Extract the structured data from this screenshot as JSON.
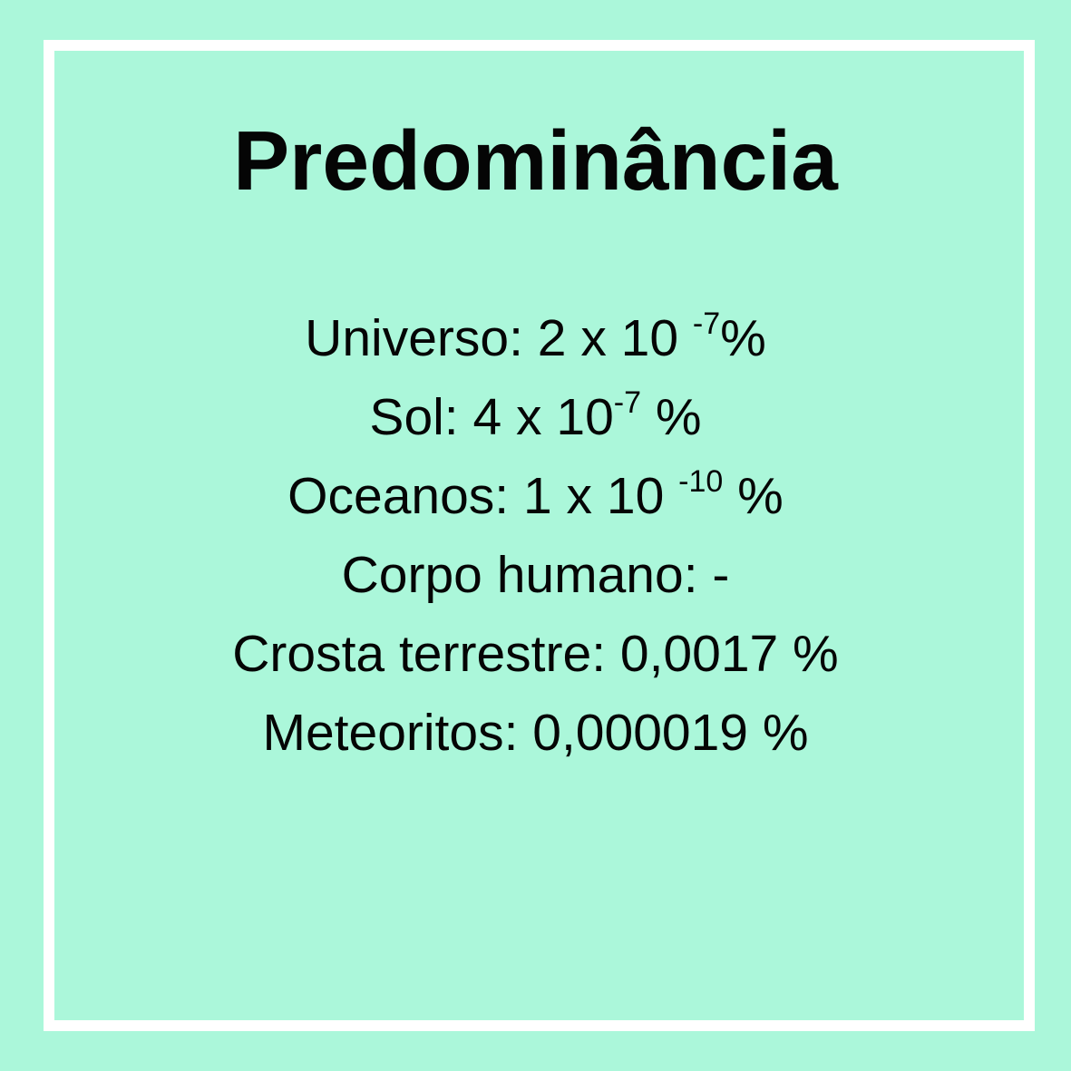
{
  "title": "Predominância",
  "rows": [
    {
      "label": "Universo:",
      "mantissa": "2",
      "times": "x",
      "base": "10",
      "exponent": "-7",
      "unit": "%"
    },
    {
      "label": "Sol:",
      "mantissa": "4",
      "times": "x",
      "base": "10",
      "exponent": "-7",
      "unit": "%"
    },
    {
      "label": "Oceanos:",
      "mantissa": "1",
      "times": "x",
      "base": "10",
      "exponent": "-10",
      "unit": "%"
    },
    {
      "label": "Corpo humano:",
      "value": "-"
    },
    {
      "label": "Crosta terrestre:",
      "value": "0,0017 %"
    },
    {
      "label": "Meteoritos:",
      "value": "0,000019 %"
    }
  ],
  "colors": {
    "background": "#abf7da",
    "border": "#ffffff",
    "text": "#050505"
  }
}
